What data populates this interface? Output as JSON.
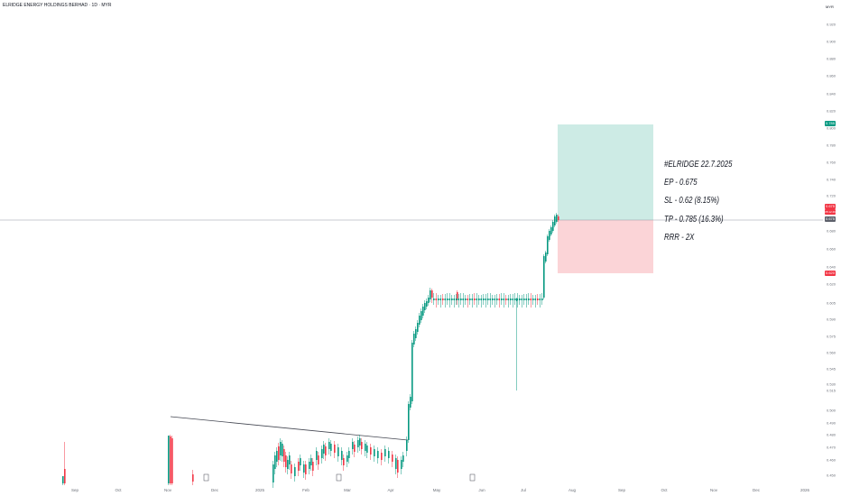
{
  "header": {
    "title": "ELRIDGE ENERGY HOLDINGS BERHAD · 1D · MYR",
    "currency": "MYR"
  },
  "annotation": {
    "line1": "#ELRIDGE 22.7.2025",
    "line2": "EP - 0.675",
    "line3": "SL - 0.62 (8.15%)",
    "line4": "TP - 0.785 (16.3%)",
    "line5": "RRR - 2X"
  },
  "badges": {
    "tp": "0.785",
    "price": "0.675",
    "countdown": "05:12:49",
    "entry": "0.675",
    "sl": "0.620"
  },
  "colors": {
    "up": "#089981",
    "down": "#f23645",
    "profit_zone": "#cdebe5",
    "loss_zone": "#fbd4d7",
    "trendline": "#434651"
  },
  "chart_data": {
    "type": "candlestick",
    "y_ticks": [
      "0.920",
      "0.900",
      "0.880",
      "0.860",
      "0.840",
      "0.820",
      "0.800",
      "0.780",
      "0.760",
      "0.740",
      "0.720",
      "0.700",
      "0.680",
      "0.660",
      "0.640",
      "0.620",
      "0.605",
      "0.590",
      "0.575",
      "0.560",
      "0.545",
      "0.530",
      "0.515",
      "0.500",
      "0.490",
      "0.480",
      "0.470",
      "0.460",
      "0.450"
    ],
    "x_ticks": [
      "Sep",
      "Oct",
      "Nov",
      "Dec",
      "2025",
      "Feb",
      "Mar",
      "Apr",
      "May",
      "Jun",
      "Jul",
      "Aug",
      "Sep",
      "Oct",
      "Nov",
      "Dec",
      "2026"
    ],
    "trade": {
      "entry": 0.675,
      "stop_loss": 0.62,
      "take_profit": 0.785
    },
    "price_sample": [
      {
        "t": "2024-08",
        "o": 0.47,
        "h": 0.485,
        "l": 0.445,
        "c": 0.455
      },
      {
        "t": "2024-11",
        "o": 0.45,
        "h": 0.49,
        "l": 0.445,
        "c": 0.48
      },
      {
        "t": "2025-02",
        "o": 0.46,
        "h": 0.475,
        "l": 0.45,
        "c": 0.465
      },
      {
        "t": "2025-03",
        "o": 0.465,
        "h": 0.48,
        "l": 0.455,
        "c": 0.47
      },
      {
        "t": "2025-04",
        "o": 0.47,
        "h": 0.6,
        "l": 0.46,
        "c": 0.595
      },
      {
        "t": "2025-05",
        "o": 0.6,
        "h": 0.61,
        "l": 0.59,
        "c": 0.6
      },
      {
        "t": "2025-06",
        "o": 0.6,
        "h": 0.605,
        "l": 0.515,
        "c": 0.6
      },
      {
        "t": "2025-07",
        "o": 0.6,
        "h": 0.68,
        "l": 0.595,
        "c": 0.675
      }
    ]
  }
}
